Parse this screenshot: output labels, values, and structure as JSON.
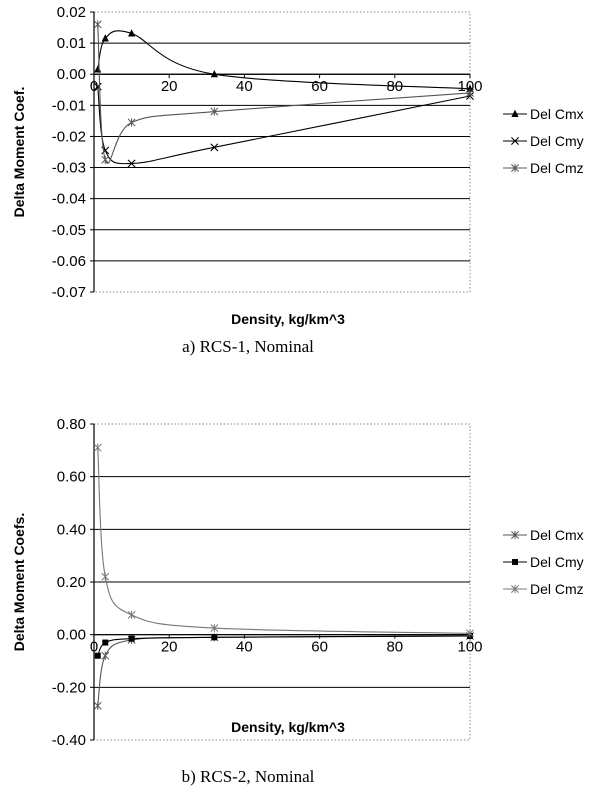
{
  "chart_data": [
    {
      "type": "line",
      "caption": "a) RCS-1, Nominal",
      "xlabel": "Density, kg/km^3",
      "ylabel": "Delta Moment Coef.",
      "xlim": [
        0,
        100
      ],
      "ylim": [
        -0.07,
        0.02
      ],
      "x_ticks": [
        "0",
        "20",
        "40",
        "60",
        "80",
        "100"
      ],
      "y_ticks": [
        "0.02",
        "0.01",
        "0.00",
        "-0.01",
        "-0.02",
        "-0.03",
        "-0.04",
        "-0.05",
        "-0.06",
        "-0.07"
      ],
      "y_tick_values": [
        0.02,
        0.01,
        0.0,
        -0.01,
        -0.02,
        -0.03,
        -0.04,
        -0.05,
        -0.06,
        -0.07
      ],
      "grid": "horizontal",
      "legend_position": "right",
      "series": [
        {
          "name": "Del Cmx",
          "marker": "triangle",
          "color": "#000000",
          "x": [
            1,
            3,
            10,
            32,
            100
          ],
          "y": [
            0.0015,
            0.0115,
            0.0131,
            0.0,
            -0.0047
          ]
        },
        {
          "name": "Del Cmy",
          "marker": "x",
          "color": "#000000",
          "x": [
            1,
            3,
            10,
            32,
            100
          ],
          "y": [
            -0.004,
            -0.0245,
            -0.0287,
            -0.0235,
            -0.007
          ]
        },
        {
          "name": "Del Cmz",
          "marker": "asterisk",
          "color": "#555555",
          "x": [
            1,
            3,
            10,
            32,
            100
          ],
          "y": [
            0.016,
            -0.0275,
            -0.0155,
            -0.012,
            -0.006
          ]
        }
      ]
    },
    {
      "type": "line",
      "caption": "b) RCS-2, Nominal",
      "xlabel": "Density, kg/km^3",
      "ylabel": "Delta Moment Coefs.",
      "xlim": [
        0,
        100
      ],
      "ylim": [
        -0.4,
        0.8
      ],
      "x_ticks": [
        "0",
        "20",
        "40",
        "60",
        "80",
        "100"
      ],
      "y_ticks": [
        "0.80",
        "0.60",
        "0.40",
        "0.20",
        "0.00",
        "-0.20",
        "-0.40"
      ],
      "y_tick_values": [
        0.8,
        0.6,
        0.4,
        0.2,
        0.0,
        -0.2,
        -0.4
      ],
      "grid": "horizontal",
      "legend_position": "right",
      "series": [
        {
          "name": "Del Cmx",
          "marker": "asterisk",
          "color": "#555555",
          "x": [
            1,
            3,
            10,
            32,
            100
          ],
          "y": [
            -0.27,
            -0.08,
            -0.02,
            -0.01,
            -0.005
          ]
        },
        {
          "name": "Del Cmy",
          "marker": "square",
          "color": "#000000",
          "x": [
            1,
            3,
            10,
            32,
            100
          ],
          "y": [
            -0.08,
            -0.03,
            -0.015,
            -0.01,
            -0.005
          ]
        },
        {
          "name": "Del Cmz",
          "marker": "asterisk",
          "color": "#777777",
          "x": [
            1,
            3,
            10,
            32,
            100
          ],
          "y": [
            0.71,
            0.22,
            0.075,
            0.025,
            0.005
          ]
        }
      ]
    }
  ]
}
